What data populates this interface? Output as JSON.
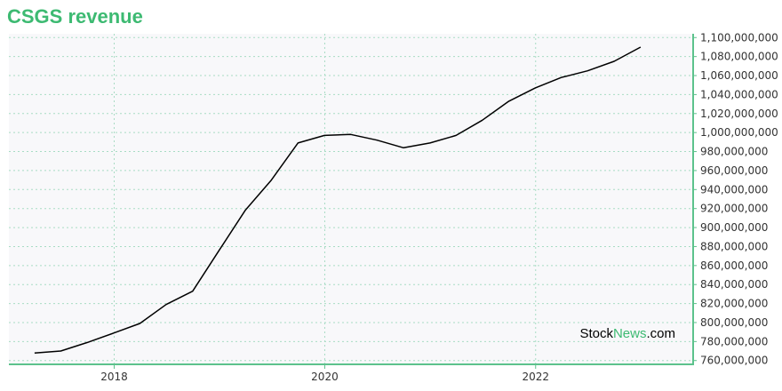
{
  "colors": {
    "accent": "#3dba72",
    "line": "#000000",
    "grid": "#a8dcc4",
    "background": "#f8f8fa",
    "axis": "#5cc28c"
  },
  "watermark": {
    "part1": "Stock",
    "part2": "News",
    "part3": ".com"
  },
  "chart_data": {
    "type": "line",
    "title": "CSGS revenue",
    "xlabel": "",
    "ylabel": "",
    "x_type": "date",
    "xlim": [
      "2017-01-01",
      "2023-07-01"
    ],
    "ylim": [
      756000000,
      1104000000
    ],
    "x_ticks": [
      "2018-01-01",
      "2020-01-01",
      "2022-01-01"
    ],
    "x_tick_labels": [
      "2018",
      "2020",
      "2022"
    ],
    "y_ticks": [
      760000000,
      780000000,
      800000000,
      820000000,
      840000000,
      860000000,
      880000000,
      900000000,
      920000000,
      940000000,
      960000000,
      980000000,
      1000000000,
      1020000000,
      1040000000,
      1060000000,
      1080000000,
      1100000000
    ],
    "y_tick_labels": [
      "760,000,000",
      "780,000,000",
      "800,000,000",
      "820,000,000",
      "840,000,000",
      "860,000,000",
      "880,000,000",
      "900,000,000",
      "920,000,000",
      "940,000,000",
      "960,000,000",
      "980,000,000",
      "1,000,000,000",
      "1,020,000,000",
      "1,040,000,000",
      "1,060,000,000",
      "1,080,000,000",
      "1,100,000,000"
    ],
    "grid": true,
    "y_axis_side": "right",
    "series": [
      {
        "x": [
          "2017-03-31",
          "2017-06-30",
          "2017-09-30",
          "2017-12-31",
          "2018-03-31",
          "2018-06-30",
          "2018-09-30",
          "2018-12-31",
          "2019-03-31",
          "2019-06-30",
          "2019-09-30",
          "2019-12-31",
          "2020-03-31",
          "2020-06-30",
          "2020-09-30",
          "2020-12-31",
          "2021-03-31",
          "2021-06-30",
          "2021-09-30",
          "2021-12-31",
          "2022-03-31",
          "2022-06-30",
          "2022-09-30",
          "2022-12-31"
        ],
        "values": [
          768000000,
          770000000,
          779000000,
          789000000,
          799000000,
          819000000,
          833000000,
          876000000,
          918000000,
          950000000,
          989000000,
          997000000,
          998000000,
          992000000,
          984000000,
          989000000,
          997000000,
          1013000000,
          1033000000,
          1047000000,
          1058000000,
          1065000000,
          1075000000,
          1090000000
        ]
      }
    ]
  }
}
